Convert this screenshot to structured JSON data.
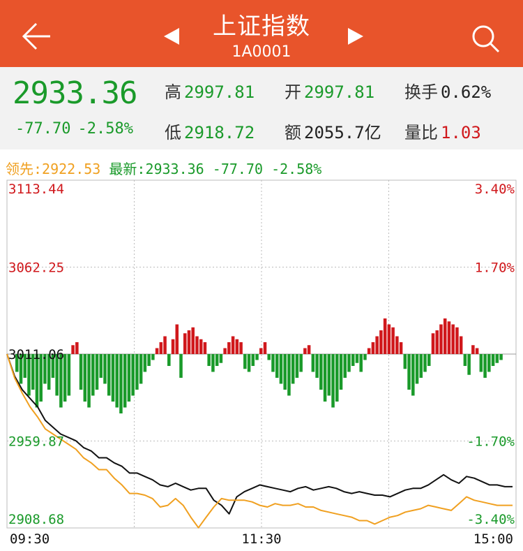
{
  "header": {
    "title": "上证指数",
    "code": "1A0001",
    "prev_icon": "triangle-left-icon",
    "next_icon": "triangle-right-icon",
    "back_icon": "back-arrow-icon",
    "search_icon": "search-icon"
  },
  "quote": {
    "price": "2933.36",
    "change": "-77.70",
    "change_pct": "-2.58%",
    "high_label": "高",
    "high": "2997.81",
    "open_label": "开",
    "open": "2997.81",
    "turnover_label": "换手",
    "turnover": "0.62%",
    "low_label": "低",
    "low": "2918.72",
    "amount_label": "额",
    "amount": "2055.7亿",
    "vol_ratio_label": "量比",
    "vol_ratio": "1.03"
  },
  "legend": {
    "lead_label": "领先:",
    "lead_value": "2922.53",
    "latest_label": "最新:",
    "latest_value": "2933.36",
    "latest_change": "-77.70",
    "latest_pct": "-2.58%"
  },
  "colors": {
    "brand": "#e8542b",
    "up": "#d0181c",
    "down": "#1a9a2a",
    "lead_line": "#f0a020",
    "price_line": "#111111"
  },
  "chart_data": {
    "type": "line",
    "prev_close": 3011.06,
    "ylim": [
      2908.68,
      3113.44
    ],
    "y_ticks_left": [
      "3113.44",
      "3062.25",
      "3011.06",
      "2959.87",
      "2908.68"
    ],
    "y_ticks_right": [
      "3.40%",
      "1.70%",
      "",
      "-1.70%",
      "-3.40%"
    ],
    "x_ticks": [
      "09:30",
      "11:30",
      "15:00"
    ],
    "series": [
      {
        "key": "price",
        "values": [
          3011.06,
          2998,
          2990,
          2985,
          2980,
          2972,
          2968,
          2964,
          2962,
          2960,
          2956,
          2954,
          2950,
          2950,
          2947,
          2945,
          2941,
          2941,
          2939,
          2937,
          2934,
          2933,
          2935,
          2933,
          2931,
          2932,
          2932,
          2925,
          2922,
          2917,
          2927,
          2930,
          2932,
          2934,
          2933,
          2932,
          2931,
          2930,
          2932,
          2933,
          2931,
          2932,
          2933,
          2932,
          2930,
          2929,
          2930,
          2929,
          2928,
          2928,
          2927,
          2929,
          2931,
          2932,
          2932,
          2934,
          2937,
          2940,
          2937,
          2935,
          2939,
          2938,
          2936,
          2934,
          2934,
          2933,
          2933
        ]
      },
      {
        "key": "lead",
        "values": [
          3011.06,
          2997,
          2988,
          2980,
          2974,
          2967,
          2964,
          2961,
          2958,
          2955,
          2950,
          2947,
          2943,
          2943,
          2938,
          2934,
          2929,
          2929,
          2928,
          2926,
          2921,
          2922,
          2926,
          2922,
          2915,
          2908.8,
          2915,
          2921,
          2926,
          2925,
          2925,
          2925,
          2924,
          2922,
          2921,
          2923,
          2922,
          2922,
          2923,
          2921,
          2921,
          2919,
          2918,
          2917,
          2916,
          2915,
          2913,
          2913,
          2911,
          2913,
          2915,
          2916,
          2918,
          2919,
          2920,
          2922,
          2921,
          2920,
          2919,
          2923,
          2927,
          2925,
          2924,
          2923,
          2922,
          2922,
          2922
        ]
      }
    ],
    "volume_diff": [
      -0.3,
      -0.5,
      -0.4,
      -0.7,
      -0.6,
      -0.9,
      -0.8,
      -0.5,
      -0.6,
      -0.4,
      -0.7,
      -0.9,
      -0.8,
      -0.7,
      0.15,
      0.2,
      -0.6,
      -0.8,
      -0.9,
      -0.7,
      -0.6,
      -0.4,
      -0.5,
      -0.7,
      -0.8,
      -0.9,
      -1.0,
      -0.9,
      -0.8,
      -0.7,
      -0.6,
      -0.5,
      -0.3,
      -0.2,
      -0.1,
      0.1,
      0.2,
      0.3,
      -0.2,
      0.25,
      0.5,
      -0.4,
      0.35,
      0.4,
      0.45,
      0.3,
      0.25,
      0.2,
      -0.2,
      -0.3,
      -0.2,
      -0.15,
      0.1,
      0.2,
      0.3,
      0.25,
      0.2,
      -0.25,
      -0.3,
      -0.2,
      -0.1,
      0.1,
      0.2,
      -0.1,
      -0.3,
      -0.4,
      -0.5,
      -0.6,
      -0.7,
      -0.5,
      -0.4,
      -0.3,
      0.1,
      0.15,
      -0.3,
      -0.4,
      -0.6,
      -0.8,
      -0.7,
      -0.9,
      -0.8,
      -0.6,
      -0.4,
      -0.3,
      -0.2,
      -0.15,
      -0.3,
      -0.1,
      0.1,
      0.2,
      0.3,
      0.4,
      0.6,
      0.5,
      0.45,
      0.3,
      0.2,
      -0.25,
      -0.6,
      -0.7,
      -0.5,
      -0.4,
      -0.3,
      -0.2,
      0.35,
      0.4,
      0.5,
      0.6,
      0.55,
      0.5,
      0.45,
      0.3,
      -0.2,
      -0.35,
      0.15,
      0.1,
      -0.3,
      -0.4,
      -0.3,
      -0.2,
      -0.15,
      -0.1
    ]
  }
}
